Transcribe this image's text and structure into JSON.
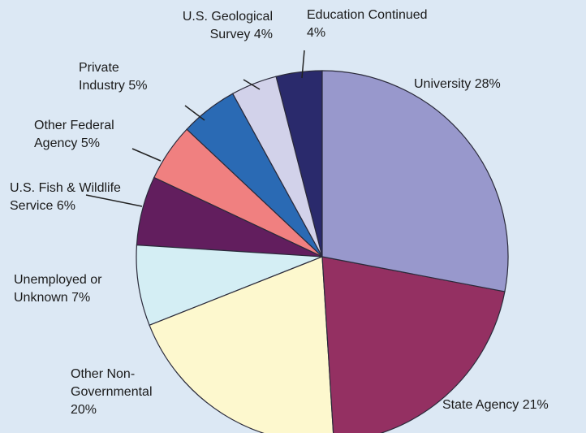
{
  "chart_data": {
    "type": "pie",
    "categories": [
      "University",
      "State Agency",
      "Other Non-Governmental",
      "Unemployed or Unknown",
      "U.S. Fish & Wildlife Service",
      "Other Federal Agency",
      "Private Industry",
      "U.S. Geological Survey",
      "Education Continued"
    ],
    "values": [
      28,
      21,
      20,
      7,
      6,
      5,
      5,
      4,
      4
    ],
    "value_labels": [
      "28%",
      "21%",
      "20%",
      "7%",
      "6%",
      "5%",
      "5%",
      "4%",
      "4%"
    ],
    "colors": [
      "#9898cc",
      "#943062",
      "#fdf8ce",
      "#d4eef4",
      "#621e5e",
      "#f08080",
      "#2a6ab4",
      "#d2d2ea",
      "#2a2a6c"
    ]
  }
}
